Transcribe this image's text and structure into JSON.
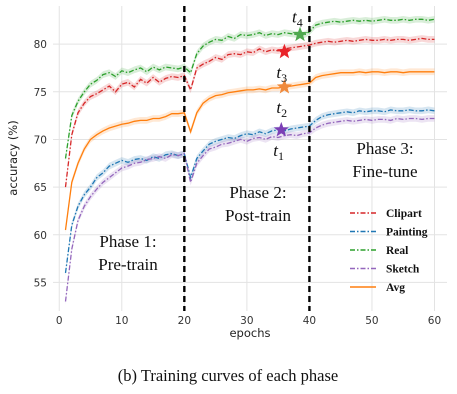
{
  "caption": "(b) Training curves of each phase",
  "chart_data": {
    "type": "line",
    "xlabel": "epochs",
    "ylabel": "accuracy (%)",
    "xlim": [
      -1,
      62
    ],
    "ylim": [
      52,
      84
    ],
    "xticks": [
      0,
      10,
      20,
      30,
      40,
      50,
      60
    ],
    "yticks": [
      55,
      60,
      65,
      70,
      75,
      80
    ],
    "grid": true,
    "legend_position": "lower-right",
    "phase_boundaries": [
      20,
      40
    ],
    "phase_labels": [
      {
        "line1": "Phase 1:",
        "line2": "Pre-train"
      },
      {
        "line1": "Phase 2:",
        "line2": "Post-train"
      },
      {
        "line1": "Phase 3:",
        "line2": "Fine-tune"
      }
    ],
    "series": [
      {
        "name": "Clipart",
        "color": "#d62728",
        "dash": "dashdot",
        "x": [
          1,
          2,
          3,
          4,
          5,
          6,
          7,
          8,
          9,
          10,
          11,
          12,
          13,
          14,
          15,
          16,
          17,
          18,
          19,
          20,
          21,
          22,
          23,
          24,
          25,
          26,
          27,
          28,
          29,
          30,
          31,
          32,
          33,
          34,
          35,
          36,
          37,
          38,
          39,
          40,
          41,
          42,
          43,
          44,
          45,
          46,
          47,
          48,
          49,
          50,
          51,
          52,
          53,
          54,
          55,
          56,
          57,
          58,
          59,
          60
        ],
        "y": [
          65.0,
          70.5,
          72.8,
          73.8,
          74.5,
          74.8,
          75.2,
          75.6,
          75.0,
          75.8,
          76.0,
          75.5,
          76.3,
          75.9,
          76.5,
          76.0,
          76.4,
          76.6,
          76.5,
          76.7,
          75.2,
          77.5,
          77.9,
          78.2,
          78.6,
          78.4,
          78.9,
          79.0,
          78.9,
          79.2,
          79.1,
          79.5,
          79.2,
          79.4,
          79.3,
          79.5,
          79.6,
          79.7,
          79.8,
          79.9,
          80.1,
          80.2,
          80.3,
          80.2,
          80.3,
          80.4,
          80.3,
          80.4,
          80.5,
          80.4,
          80.4,
          80.5,
          80.4,
          80.5,
          80.5,
          80.4,
          80.5,
          80.6,
          80.5,
          80.5
        ]
      },
      {
        "name": "Painting",
        "color": "#1f77b4",
        "dash": "dashdot",
        "x": [
          1,
          2,
          3,
          4,
          5,
          6,
          7,
          8,
          9,
          10,
          11,
          12,
          13,
          14,
          15,
          16,
          17,
          18,
          19,
          20,
          21,
          22,
          23,
          24,
          25,
          26,
          27,
          28,
          29,
          30,
          31,
          32,
          33,
          34,
          35,
          36,
          37,
          38,
          39,
          40,
          41,
          42,
          43,
          44,
          45,
          46,
          47,
          48,
          49,
          50,
          51,
          52,
          53,
          54,
          55,
          56,
          57,
          58,
          59,
          60
        ],
        "y": [
          56.0,
          61.0,
          63.0,
          64.2,
          65.0,
          66.0,
          66.5,
          67.2,
          67.5,
          67.8,
          67.6,
          67.9,
          68.0,
          67.8,
          68.2,
          68.0,
          68.4,
          68.5,
          68.3,
          68.5,
          66.0,
          68.0,
          68.8,
          69.5,
          69.8,
          70.0,
          70.2,
          70.1,
          70.4,
          70.6,
          70.5,
          70.8,
          70.6,
          70.9,
          71.0,
          70.9,
          71.1,
          71.2,
          71.3,
          71.4,
          72.0,
          72.4,
          72.6,
          72.7,
          72.8,
          72.9,
          72.8,
          73.0,
          72.9,
          73.0,
          73.0,
          72.9,
          73.1,
          73.0,
          73.0,
          73.1,
          73.0,
          73.0,
          73.1,
          73.0
        ]
      },
      {
        "name": "Real",
        "color": "#2ca02c",
        "dash": "dashdot",
        "x": [
          1,
          2,
          3,
          4,
          5,
          6,
          7,
          8,
          9,
          10,
          11,
          12,
          13,
          14,
          15,
          16,
          17,
          18,
          19,
          20,
          21,
          22,
          23,
          24,
          25,
          26,
          27,
          28,
          29,
          30,
          31,
          32,
          33,
          34,
          35,
          36,
          37,
          38,
          39,
          40,
          41,
          42,
          43,
          44,
          45,
          46,
          47,
          48,
          49,
          50,
          51,
          52,
          53,
          54,
          55,
          56,
          57,
          58,
          59,
          60
        ],
        "y": [
          68.0,
          72.5,
          74.0,
          75.0,
          75.8,
          76.2,
          76.8,
          77.0,
          76.6,
          77.2,
          77.0,
          77.3,
          77.5,
          77.1,
          77.6,
          77.3,
          77.6,
          77.5,
          77.4,
          77.6,
          77.0,
          79.0,
          79.8,
          80.2,
          80.5,
          80.4,
          80.8,
          80.6,
          81.0,
          80.9,
          81.0,
          81.2,
          80.9,
          81.1,
          81.0,
          81.2,
          81.1,
          81.0,
          80.9,
          81.3,
          82.0,
          82.2,
          82.3,
          82.4,
          82.3,
          82.4,
          82.5,
          82.4,
          82.5,
          82.4,
          82.5,
          82.6,
          82.5,
          82.5,
          82.6,
          82.5,
          82.6,
          82.6,
          82.5,
          82.6
        ]
      },
      {
        "name": "Sketch",
        "color": "#9467bd",
        "dash": "dashdot",
        "x": [
          1,
          2,
          3,
          4,
          5,
          6,
          7,
          8,
          9,
          10,
          11,
          12,
          13,
          14,
          15,
          16,
          17,
          18,
          19,
          20,
          21,
          22,
          23,
          24,
          25,
          26,
          27,
          28,
          29,
          30,
          31,
          32,
          33,
          34,
          35,
          36,
          37,
          38,
          39,
          40,
          41,
          42,
          43,
          44,
          45,
          46,
          47,
          48,
          49,
          50,
          51,
          52,
          53,
          54,
          55,
          56,
          57,
          58,
          59,
          60
        ],
        "y": [
          53.0,
          58.5,
          61.5,
          63.0,
          64.0,
          64.8,
          65.5,
          66.0,
          66.5,
          67.0,
          67.2,
          67.5,
          67.6,
          67.9,
          68.0,
          68.2,
          68.0,
          68.4,
          68.3,
          68.5,
          65.5,
          67.5,
          68.3,
          69.0,
          69.2,
          69.5,
          69.6,
          69.8,
          70.0,
          69.8,
          70.1,
          70.2,
          70.0,
          70.3,
          70.2,
          70.4,
          70.5,
          70.4,
          70.6,
          70.7,
          71.2,
          71.5,
          71.7,
          71.8,
          71.9,
          72.0,
          71.9,
          72.0,
          72.1,
          72.0,
          72.1,
          72.1,
          72.0,
          72.2,
          72.1,
          72.2,
          72.2,
          72.1,
          72.2,
          72.2
        ]
      },
      {
        "name": "Avg",
        "color": "#ff7f0e",
        "dash": "solid",
        "x": [
          1,
          2,
          3,
          4,
          5,
          6,
          7,
          8,
          9,
          10,
          11,
          12,
          13,
          14,
          15,
          16,
          17,
          18,
          19,
          20,
          21,
          22,
          23,
          24,
          25,
          26,
          27,
          28,
          29,
          30,
          31,
          32,
          33,
          34,
          35,
          36,
          37,
          38,
          39,
          40,
          41,
          42,
          43,
          44,
          45,
          46,
          47,
          48,
          49,
          50,
          51,
          52,
          53,
          54,
          55,
          56,
          57,
          58,
          59,
          60
        ],
        "y": [
          60.5,
          65.5,
          67.5,
          69.0,
          70.0,
          70.5,
          70.9,
          71.2,
          71.4,
          71.6,
          71.7,
          71.9,
          72.0,
          72.0,
          72.2,
          72.2,
          72.4,
          72.7,
          72.7,
          72.8,
          70.8,
          72.8,
          73.8,
          74.3,
          74.6,
          74.7,
          74.9,
          75.0,
          75.1,
          75.2,
          75.2,
          75.3,
          75.2,
          75.4,
          75.4,
          75.5,
          75.6,
          75.7,
          75.8,
          75.9,
          76.5,
          76.7,
          76.8,
          76.9,
          77.0,
          77.0,
          77.0,
          77.1,
          77.0,
          77.1,
          77.1,
          77.0,
          77.1,
          77.1,
          77.0,
          77.1,
          77.1,
          77.1,
          77.1,
          77.1
        ]
      }
    ],
    "stars": [
      {
        "label": "t",
        "sub": "1",
        "x": 35.5,
        "y": 71.0,
        "color": "#7b3fb5",
        "label_pos": "below"
      },
      {
        "label": "t",
        "sub": "2",
        "x": 36,
        "y": 75.5,
        "color": "#f08a3c",
        "label_pos": "below"
      },
      {
        "label": "t",
        "sub": "3",
        "x": 36,
        "y": 79.2,
        "color": "#e8242a",
        "label_pos": "below"
      },
      {
        "label": "t",
        "sub": "4",
        "x": 38.5,
        "y": 81.0,
        "color": "#4fa84f",
        "label_pos": "above"
      }
    ]
  }
}
